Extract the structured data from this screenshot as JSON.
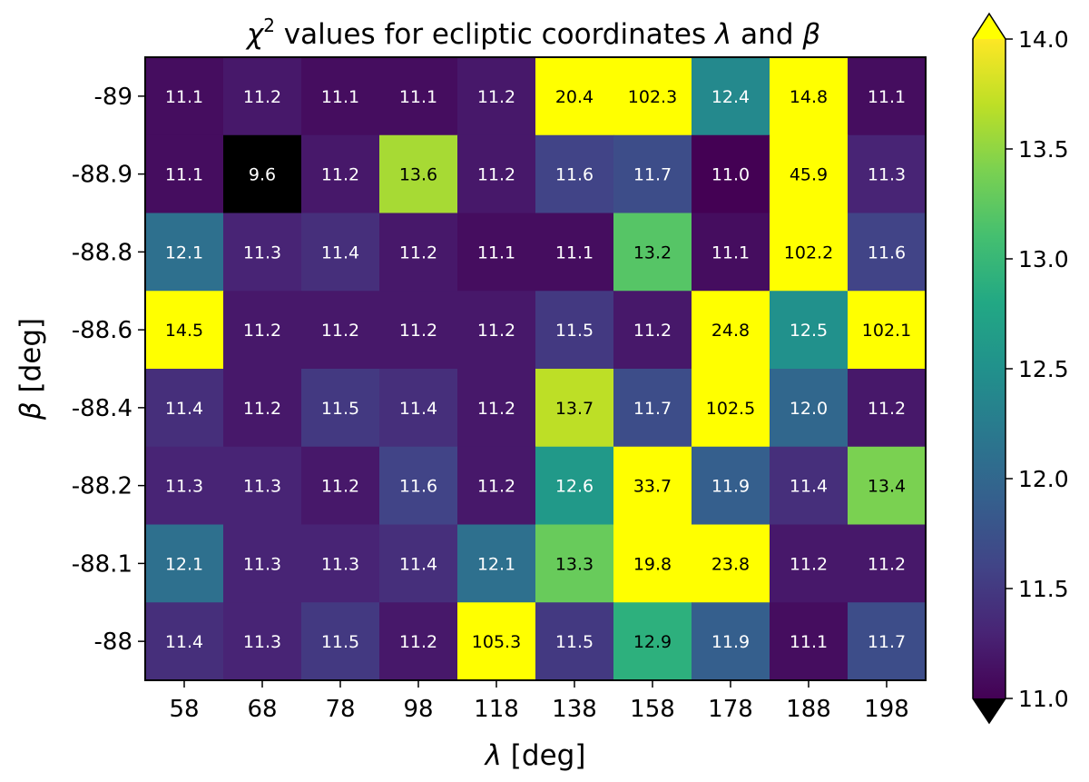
{
  "chart_data": {
    "type": "heatmap",
    "title": "χ² values for ecliptic coordinates λ and β",
    "title_parts": {
      "chi": "χ",
      "sup": "2",
      "rest": " values for ecliptic coordinates ",
      "lambda": "λ",
      "and": " and ",
      "beta": "β"
    },
    "xlabel": "λ [deg]",
    "xlabel_parts": {
      "sym": "λ",
      "unit": " [deg]"
    },
    "ylabel": "β [deg]",
    "ylabel_parts": {
      "sym": "β",
      "unit": " [deg]"
    },
    "x_categories": [
      "58",
      "68",
      "78",
      "98",
      "118",
      "138",
      "158",
      "178",
      "188",
      "198"
    ],
    "y_categories": [
      "-89",
      "-88.9",
      "-88.8",
      "-88.6",
      "-88.4",
      "-88.2",
      "-88.1",
      "-88"
    ],
    "values": [
      [
        11.1,
        11.2,
        11.1,
        11.1,
        11.2,
        20.4,
        102.3,
        12.4,
        14.8,
        11.1
      ],
      [
        11.1,
        9.6,
        11.2,
        13.6,
        11.2,
        11.6,
        11.7,
        11.0,
        45.9,
        11.3
      ],
      [
        12.1,
        11.3,
        11.4,
        11.2,
        11.1,
        11.1,
        13.2,
        11.1,
        102.2,
        11.6
      ],
      [
        14.5,
        11.2,
        11.2,
        11.2,
        11.2,
        11.5,
        11.2,
        24.8,
        12.5,
        102.1
      ],
      [
        11.4,
        11.2,
        11.5,
        11.4,
        11.2,
        13.7,
        11.7,
        102.5,
        12.0,
        11.2
      ],
      [
        11.3,
        11.3,
        11.2,
        11.6,
        11.2,
        12.6,
        33.7,
        11.9,
        11.4,
        13.4
      ],
      [
        12.1,
        11.3,
        11.3,
        11.4,
        12.1,
        13.3,
        19.8,
        23.8,
        11.2,
        11.2
      ],
      [
        11.4,
        11.3,
        11.5,
        11.2,
        105.3,
        11.5,
        12.9,
        11.9,
        11.1,
        11.7
      ]
    ],
    "value_labels": [
      [
        "11.1",
        "11.2",
        "11.1",
        "11.1",
        "11.2",
        "20.4",
        "102.3",
        "12.4",
        "14.8",
        "11.1"
      ],
      [
        "11.1",
        "9.6",
        "11.2",
        "13.6",
        "11.2",
        "11.6",
        "11.7",
        "11.0",
        "45.9",
        "11.3"
      ],
      [
        "12.1",
        "11.3",
        "11.4",
        "11.2",
        "11.1",
        "11.1",
        "13.2",
        "11.1",
        "102.2",
        "11.6"
      ],
      [
        "14.5",
        "11.2",
        "11.2",
        "11.2",
        "11.2",
        "11.5",
        "11.2",
        "24.8",
        "12.5",
        "102.1"
      ],
      [
        "11.4",
        "11.2",
        "11.5",
        "11.4",
        "11.2",
        "13.7",
        "11.7",
        "102.5",
        "12.0",
        "11.2"
      ],
      [
        "11.3",
        "11.3",
        "11.2",
        "11.6",
        "11.2",
        "12.6",
        "33.7",
        "11.9",
        "11.4",
        "13.4"
      ],
      [
        "12.1",
        "11.3",
        "11.3",
        "11.4",
        "12.1",
        "13.3",
        "19.8",
        "23.8",
        "11.2",
        "11.2"
      ],
      [
        "11.4",
        "11.3",
        "11.5",
        "11.2",
        "105.3",
        "11.5",
        "12.9",
        "11.9",
        "11.1",
        "11.7"
      ]
    ],
    "colormap": "viridis",
    "vmin": 11.0,
    "vmax": 14.0,
    "over_color": "#ffff00",
    "under_color": "#000000",
    "colorbar": {
      "ticks": [
        11.0,
        11.5,
        12.0,
        12.5,
        13.0,
        13.5,
        14.0
      ],
      "tick_labels": [
        "11.0",
        "11.5",
        "12.0",
        "12.5",
        "13.0",
        "13.5",
        "14.0"
      ],
      "extend": "both"
    },
    "grid": false
  }
}
